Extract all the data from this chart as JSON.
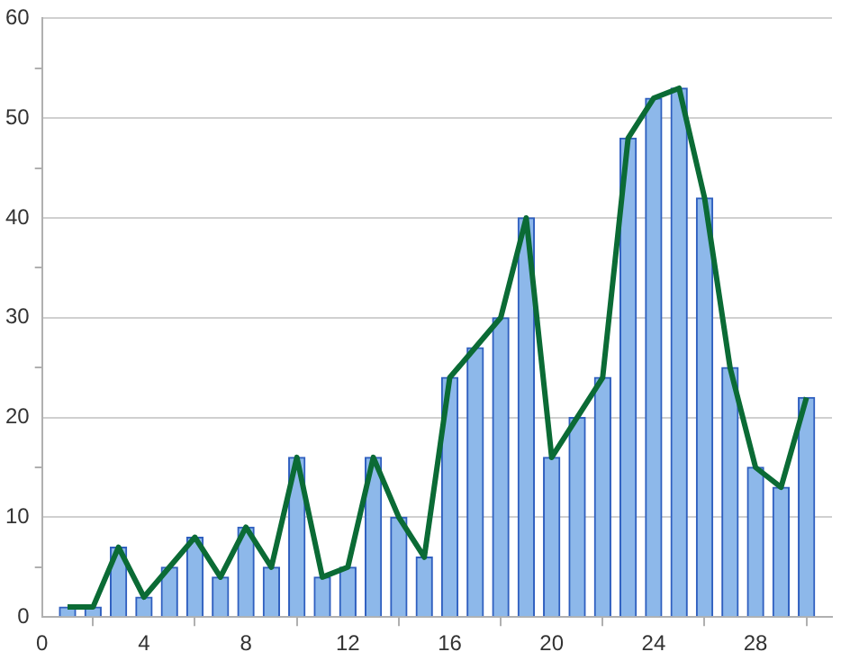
{
  "chart_data": {
    "type": "bar",
    "x": [
      1,
      2,
      3,
      4,
      5,
      6,
      7,
      8,
      9,
      10,
      11,
      12,
      13,
      14,
      15,
      16,
      17,
      18,
      19,
      20,
      21,
      22,
      23,
      24,
      25,
      26,
      27,
      28,
      29,
      30
    ],
    "series": [
      {
        "color": "#8db8ea",
        "values": [
          1,
          1,
          7,
          2,
          5,
          8,
          4,
          9,
          5,
          16,
          4,
          5,
          16,
          10,
          6,
          24,
          27,
          30,
          40,
          16,
          20,
          24,
          48,
          52,
          53,
          42,
          25,
          15,
          13,
          22
        ]
      },
      {
        "type": "line",
        "color": "#0b6b35",
        "values": [
          1,
          1,
          7,
          2,
          5,
          8,
          4,
          9,
          5,
          16,
          4,
          5,
          16,
          10,
          6,
          24,
          27,
          30,
          40,
          16,
          20,
          24,
          48,
          52,
          53,
          42,
          25,
          15,
          13,
          22
        ]
      }
    ],
    "xlim": [
      0,
      31
    ],
    "xticks": [
      0,
      4,
      8,
      12,
      16,
      20,
      24,
      28
    ],
    "ylim": [
      0,
      60
    ],
    "yticks": [
      0,
      {
        "value": 5,
        "label": null
      },
      10,
      {
        "value": 15,
        "label": null
      },
      20,
      {
        "value": 25,
        "label": null
      },
      30,
      {
        "value": 35,
        "label": null
      },
      40,
      {
        "value": 45,
        "label": null
      },
      50,
      {
        "value": 55,
        "label": null
      },
      60
    ],
    "grid": "y",
    "legend": false,
    "marker": "none",
    "line_style": "solid"
  }
}
